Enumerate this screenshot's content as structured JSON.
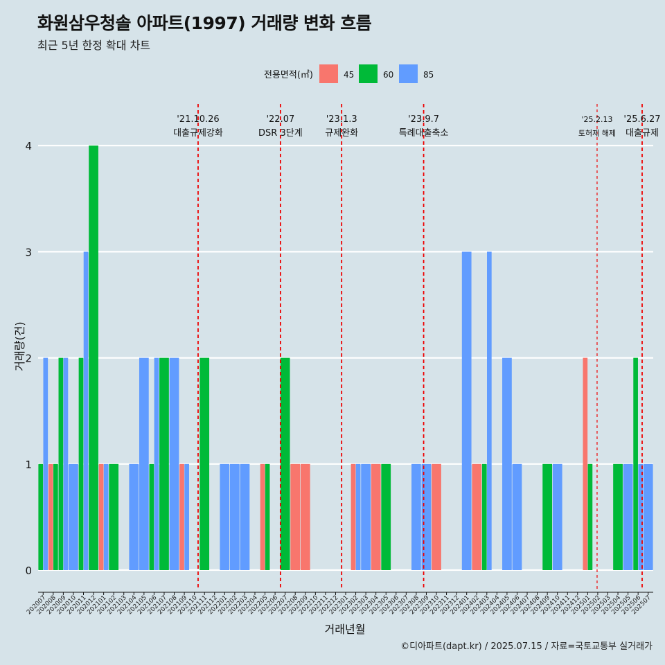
{
  "header": {
    "title": "화원삼우청솔 아파트(1997) 거래량 변화 흐름",
    "subtitle": "최근 5년 한정 확대 차트"
  },
  "caption": "©디아파트(dapt.kr) / 2025.07.15 / 자료=국토교통부 실거래가",
  "colors": {
    "background": "#d6e3e9",
    "s45": "#f8766d",
    "s60": "#00ba38",
    "s85": "#619cff",
    "event_line": "#ee0000"
  },
  "chart_data": {
    "type": "bar",
    "xlabel": "거래년월",
    "ylabel": "거래량(건)",
    "ylim": [
      0,
      4
    ],
    "yticks": [
      0,
      1,
      2,
      3,
      4
    ],
    "grid": true,
    "legend": {
      "title": "전용면적(㎡)",
      "position": "top",
      "entries": [
        "45",
        "60",
        "85"
      ]
    },
    "categories": [
      "202007",
      "202008",
      "202009",
      "202010",
      "202011",
      "202012",
      "202101",
      "202102",
      "202103",
      "202104",
      "202105",
      "202106",
      "202107",
      "202108",
      "202109",
      "202110",
      "202111",
      "202112",
      "202201",
      "202202",
      "202203",
      "202204",
      "202205",
      "202206",
      "202207",
      "202208",
      "202209",
      "202210",
      "202211",
      "202212",
      "202301",
      "202302",
      "202303",
      "202304",
      "202305",
      "202306",
      "202307",
      "202308",
      "202309",
      "202310",
      "202311",
      "202312",
      "202401",
      "202402",
      "202403",
      "202404",
      "202405",
      "202406",
      "202407",
      "202408",
      "202409",
      "202410",
      "202411",
      "202412",
      "202501",
      "202502",
      "202503",
      "202504",
      "202505",
      "202506",
      "202507"
    ],
    "series": [
      {
        "name": "45",
        "color": "#f8766d",
        "values": [
          0,
          1,
          0,
          0,
          0,
          0,
          1,
          0,
          0,
          0,
          0,
          0,
          0,
          0,
          1,
          0,
          0,
          0,
          0,
          0,
          0,
          0,
          1,
          0,
          0,
          1,
          1,
          0,
          0,
          0,
          0,
          1,
          0,
          1,
          0,
          0,
          0,
          0,
          0,
          1,
          0,
          0,
          0,
          1,
          0,
          0,
          0,
          0,
          0,
          0,
          0,
          0,
          0,
          0,
          2,
          0,
          0,
          0,
          0,
          0,
          0
        ]
      },
      {
        "name": "60",
        "color": "#00ba38",
        "values": [
          1,
          1,
          2,
          0,
          2,
          4,
          0,
          1,
          0,
          0,
          0,
          1,
          2,
          0,
          0,
          0,
          2,
          0,
          0,
          0,
          0,
          0,
          1,
          0,
          2,
          0,
          0,
          0,
          0,
          0,
          0,
          0,
          0,
          0,
          1,
          0,
          0,
          0,
          0,
          0,
          0,
          0,
          0,
          0,
          1,
          0,
          0,
          0,
          0,
          0,
          1,
          0,
          0,
          0,
          1,
          0,
          0,
          1,
          0,
          2,
          0
        ]
      },
      {
        "name": "85",
        "color": "#619cff",
        "values": [
          2,
          0,
          2,
          1,
          3,
          0,
          1,
          0,
          0,
          1,
          2,
          2,
          0,
          2,
          1,
          0,
          0,
          0,
          1,
          1,
          1,
          0,
          0,
          0,
          0,
          0,
          0,
          0,
          0,
          0,
          0,
          1,
          1,
          0,
          0,
          0,
          0,
          1,
          1,
          0,
          0,
          0,
          3,
          0,
          3,
          0,
          2,
          1,
          0,
          0,
          0,
          1,
          0,
          0,
          0,
          0,
          0,
          0,
          1,
          1,
          1
        ]
      }
    ],
    "events": [
      {
        "date_label": "'21.10.26",
        "name": "대출규제강화",
        "month": "202110",
        "day": 26
      },
      {
        "date_label": "'22.07",
        "name": "DSR 3단계",
        "month": "202207",
        "day": 1
      },
      {
        "date_label": "'23.1.3",
        "name": "규제완화",
        "month": "202301",
        "day": 3
      },
      {
        "date_label": "'23.9.7",
        "name": "특례대출축소",
        "month": "202309",
        "day": 7
      },
      {
        "date_label": "'25.2.13",
        "name": "토허제 해제",
        "month": "202502",
        "day": 13,
        "small": true
      },
      {
        "date_label": "'25.6.27",
        "name": "대출규제",
        "month": "202506",
        "day": 27
      }
    ]
  }
}
